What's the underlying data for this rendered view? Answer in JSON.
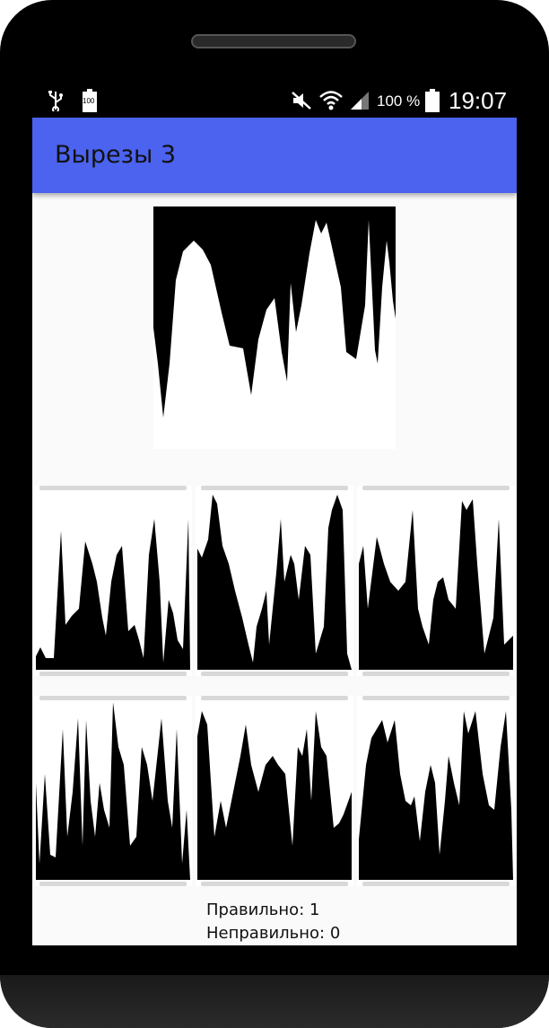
{
  "status_bar": {
    "icons": [
      "usb-icon",
      "battery-100-icon",
      "mute-icon",
      "wifi-icon",
      "signal-icon",
      "battery-full-icon"
    ],
    "battery_label": "100",
    "battery_percent": "100 %",
    "time": "19:07"
  },
  "app": {
    "title": "Вырезы 3"
  },
  "puzzle": {
    "main_image": "black-white-silhouette",
    "piece_count": 6
  },
  "score": {
    "correct": "Правильно: 1",
    "wrong": "Неправильно: 0"
  },
  "colors": {
    "appbar": "#4b63ef",
    "background": "#fafafa",
    "phone_frame": "#000000"
  }
}
